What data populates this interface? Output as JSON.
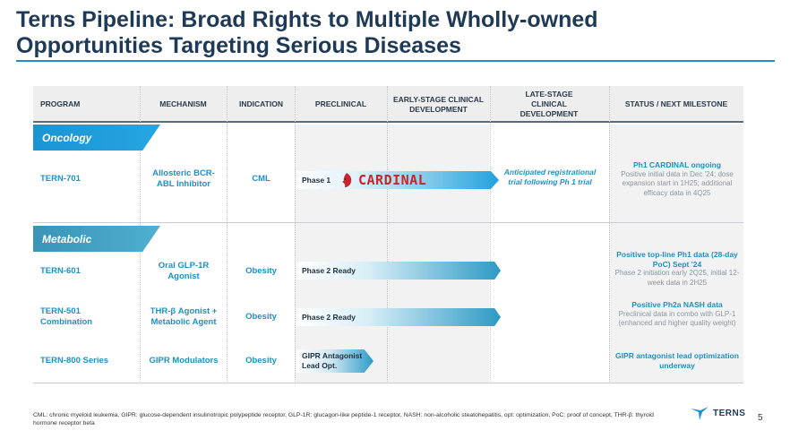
{
  "title": "Terns Pipeline: Broad Rights to Multiple Wholly-owned Opportunities Targeting Serious Diseases",
  "headers": {
    "program": "PROGRAM",
    "mechanism": "MECHANISM",
    "indication": "INDICATION",
    "preclinical": "PRECLINICAL",
    "early": "EARLY-STAGE CLINICAL DEVELOPMENT",
    "late": "LATE-STAGE CLINICAL DEVELOPMENT",
    "status": "STATUS / NEXT MILESTONE"
  },
  "sections": {
    "oncology": "Oncology",
    "metabolic": "Metabolic"
  },
  "rows": [
    {
      "program": "TERN-701",
      "mechanism": "Allosteric BCR-ABL Inhibitor",
      "indication": "CML",
      "phase": "Phase 1",
      "trial_logo": "CARDINAL",
      "late": "Anticipated registrational trial following Ph 1 trial",
      "status_title": "Ph1 CARDINAL ongoing",
      "status_body": "Positive initial data in Dec '24; dose expansion start in 1H25; additional efficacy data in 4Q25",
      "progress_through": "early-stage"
    },
    {
      "program": "TERN-601",
      "mechanism": "Oral GLP-1R Agonist",
      "indication": "Obesity",
      "phase": "Phase 2 Ready",
      "status_title": "Positive top-line Ph1 data (28-day PoC) Sept '24",
      "status_body": "Phase 2 initiation early 2Q25, initial 12-week data in 2H25",
      "progress_through": "early-stage"
    },
    {
      "program": "TERN-501 Combination",
      "mechanism": "THR-β Agonist + Metabolic Agent",
      "indication": "Obesity",
      "phase": "Phase 2 Ready",
      "status_title": "Positive Ph2a NASH data",
      "status_body": "Preclinical data in combo with GLP-1 (enhanced and higher quality weight)",
      "progress_through": "early-stage"
    },
    {
      "program": "TERN-800 Series",
      "mechanism": "GIPR Modulators",
      "indication": "Obesity",
      "phase": "GIPR Antagonist Lead Opt.",
      "status_title": "GIPR antagonist lead optimization underway",
      "status_body": "",
      "progress_through": "preclinical"
    }
  ],
  "footnote": "CML: chronic myeloid leukemia, GIPR: glucose-dependent insulinotropic polypeptide receptor, GLP-1R: glucagon-like peptide-1 receptor, NASH: non-alcoholic steatohepatitis, opt: optimization, PoC: proof of concept, THR-β: thyroid hormone receptor beta",
  "logo": "TERNS",
  "page_number": "5",
  "colors": {
    "title": "#1e3a57",
    "accent": "#1d91c7",
    "cardinal": "#c8242b"
  }
}
